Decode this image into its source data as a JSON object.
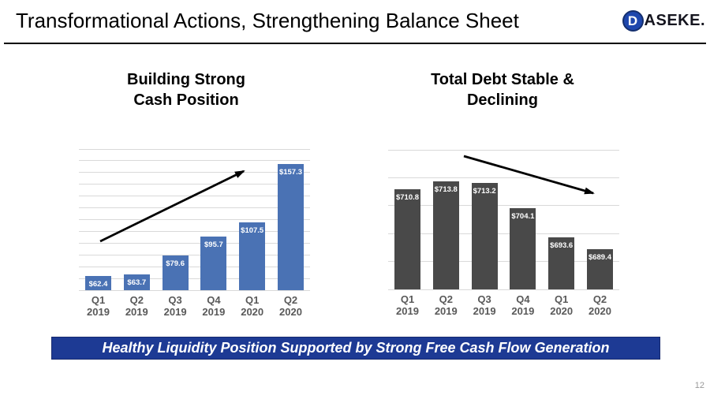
{
  "header": {
    "title": "Transformational Actions, Strengthening Balance Sheet",
    "logo": {
      "initial": "D",
      "wordmark": "ASEKE."
    }
  },
  "banner": {
    "text": "Healthy Liquidity Position Supported by Strong Free Cash Flow Generation"
  },
  "footer": {
    "page_number": "12"
  },
  "colors": {
    "cash_bar": "#4A72B4",
    "debt_bar": "#494949",
    "banner_bg": "#1D3A94",
    "gridline": "#D9D9D9",
    "axis_label": "#595959",
    "arrow": "#000000"
  },
  "chart_data": [
    {
      "type": "bar",
      "title": "Building Strong Cash Position",
      "title_lines": [
        "Building Strong",
        "Cash Position"
      ],
      "categories": [
        "Q1 2019",
        "Q2 2019",
        "Q3 2019",
        "Q4 2019",
        "Q1 2020",
        "Q2 2020"
      ],
      "values": [
        62.4,
        63.7,
        79.6,
        95.7,
        107.5,
        157.3
      ],
      "labels": [
        "$62.4",
        "$63.7",
        "$79.6",
        "$95.7",
        "$107.5",
        "$157.3"
      ],
      "bar_color": "#4A72B4",
      "ylim": [
        50,
        170
      ],
      "gridline_step": 10,
      "grid": true,
      "legend": false,
      "annotation": "upward trend arrow"
    },
    {
      "type": "bar",
      "title": "Total Debt Stable & Declining",
      "title_lines": [
        "Total Debt Stable &",
        "Declining"
      ],
      "categories": [
        "Q1 2019",
        "Q2 2019",
        "Q3 2019",
        "Q4 2019",
        "Q1 2020",
        "Q2 2020"
      ],
      "values": [
        710.8,
        713.8,
        713.2,
        704.1,
        693.6,
        689.4
      ],
      "labels": [
        "$710.8",
        "$713.8",
        "$713.2",
        "$704.1",
        "$693.6",
        "$689.4"
      ],
      "bar_color": "#494949",
      "ylim": [
        675,
        725
      ],
      "gridline_step": 10,
      "grid": true,
      "legend": false,
      "annotation": "downward trend arrow"
    }
  ]
}
